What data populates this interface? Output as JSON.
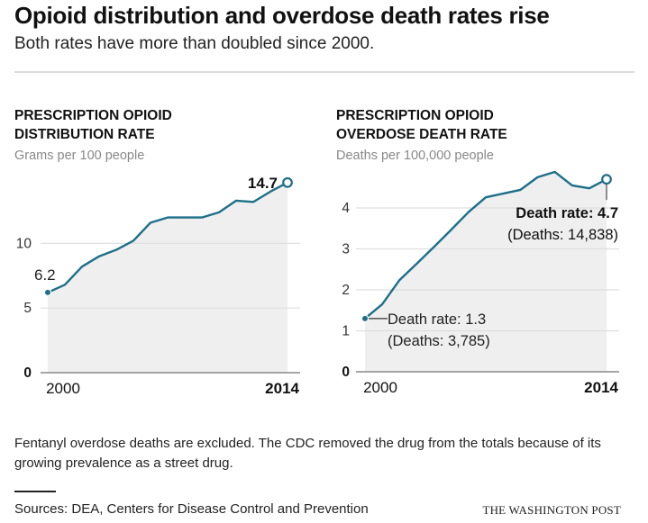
{
  "header": {
    "title": "Opioid distribution and overdose death rates rise",
    "subtitle": "Both rates have more than doubled since 2000."
  },
  "colors": {
    "line": "#1d6f8a",
    "area": "#efefef",
    "grid": "#dedede",
    "axis": "#888888"
  },
  "chart_data": [
    {
      "type": "area",
      "title_lines": [
        "PRESCRIPTION OPIOID",
        "DISTRIBUTION RATE"
      ],
      "unit_label": "Grams per 100 people",
      "x": [
        2000,
        2001,
        2002,
        2003,
        2004,
        2005,
        2006,
        2007,
        2008,
        2009,
        2010,
        2011,
        2012,
        2013,
        2014
      ],
      "values": [
        6.2,
        6.8,
        8.2,
        9.0,
        9.5,
        10.2,
        11.6,
        12.0,
        12.0,
        12.0,
        12.4,
        13.3,
        13.2,
        14.0,
        14.7
      ],
      "ylim": [
        0,
        15
      ],
      "yticks": [
        {
          "value": 0,
          "label": "0",
          "bold": true
        },
        {
          "value": 5,
          "label": "5",
          "bold": false
        },
        {
          "value": 10,
          "label": "10",
          "bold": false
        }
      ],
      "xticks": [
        {
          "value": 2000,
          "label": "2000",
          "bold": false
        },
        {
          "value": 2014,
          "label": "2014",
          "bold": true
        }
      ],
      "grid": true,
      "annotations": {
        "start": {
          "lines": [
            "6.2"
          ],
          "bold": false
        },
        "end": {
          "lines": [
            "14.7"
          ],
          "bold": true
        }
      }
    },
    {
      "type": "area",
      "title_lines": [
        "PRESCRIPTION OPIOID",
        "OVERDOSE DEATH RATE"
      ],
      "unit_label": "Deaths per 100,000 people",
      "x": [
        2000,
        2001,
        2002,
        2003,
        2004,
        2005,
        2006,
        2007,
        2008,
        2009,
        2010,
        2011,
        2012,
        2013,
        2014
      ],
      "values": [
        1.3,
        1.65,
        2.24,
        2.64,
        3.05,
        3.47,
        3.9,
        4.26,
        4.35,
        4.44,
        4.75,
        4.88,
        4.55,
        4.48,
        4.7
      ],
      "ylim": [
        0,
        5
      ],
      "yticks": [
        {
          "value": 0,
          "label": "0",
          "bold": true
        },
        {
          "value": 1,
          "label": "1",
          "bold": false
        },
        {
          "value": 2,
          "label": "2",
          "bold": false
        },
        {
          "value": 3,
          "label": "3",
          "bold": false
        },
        {
          "value": 4,
          "label": "4",
          "bold": false
        }
      ],
      "xticks": [
        {
          "value": 2000,
          "label": "2000",
          "bold": false
        },
        {
          "value": 2014,
          "label": "2014",
          "bold": true
        }
      ],
      "grid": true,
      "annotations": {
        "start": {
          "lines": [
            "Death rate: 1.3",
            "(Deaths: 3,785)"
          ],
          "bold": false
        },
        "end": {
          "lines": [
            "Death rate: 4.7",
            "(Deaths: 14,838)"
          ],
          "bold": true
        }
      }
    }
  ],
  "footer": {
    "note": "Fentanyl overdose deaths are excluded. The CDC removed the drug from the totals because of its growing prevalence as a street drug.",
    "sources": "Sources: DEA, Centers for Disease Control and Prevention",
    "credit": "THE WASHINGTON POST"
  }
}
